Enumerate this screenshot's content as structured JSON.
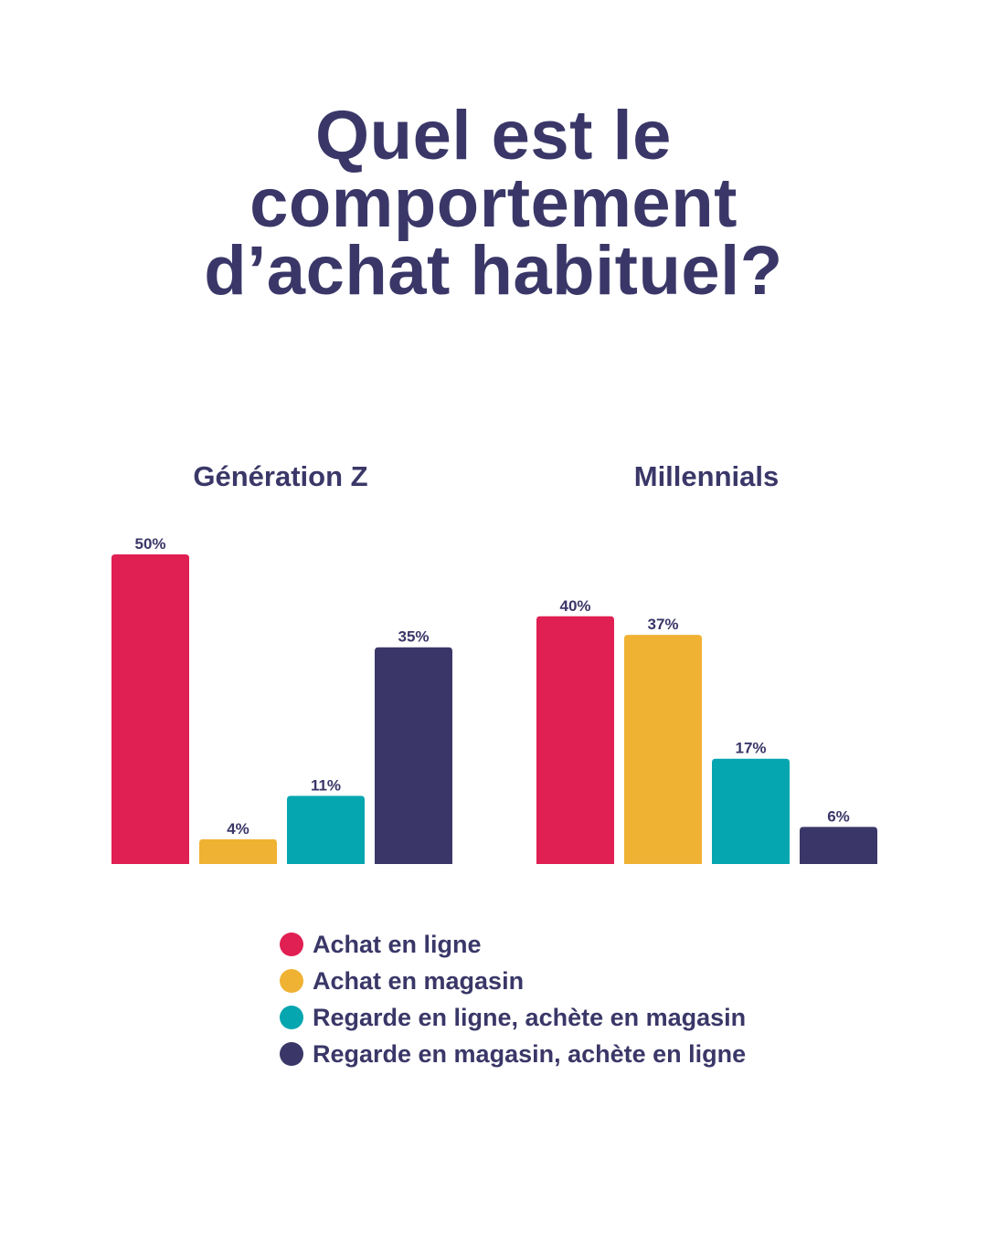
{
  "title_lines": [
    "Quel est le",
    "comportement",
    "d’achat habituel?"
  ],
  "chart_data": [
    {
      "type": "bar",
      "title": "Génération Z",
      "categories": [
        "Achat en ligne",
        "Achat en magasin",
        "Regarde en ligne, achète en magasin",
        "Regarde en magasin, achète en ligne"
      ],
      "values": [
        50,
        4,
        11,
        35
      ],
      "labels": [
        "50%",
        "4%",
        "11%",
        "35%"
      ],
      "ylim": [
        0,
        50
      ],
      "unit": "%"
    },
    {
      "type": "bar",
      "title": "Millennials",
      "categories": [
        "Achat en ligne",
        "Achat en magasin",
        "Regarde en ligne, achète en magasin",
        "Regarde en magasin, achète en ligne"
      ],
      "values": [
        40,
        37,
        17,
        6
      ],
      "labels": [
        "40%",
        "37%",
        "17%",
        "6%"
      ],
      "ylim": [
        0,
        50
      ],
      "unit": "%"
    }
  ],
  "legend": [
    {
      "label": "Achat en ligne",
      "color": "#E01F52"
    },
    {
      "label": "Achat en magasin",
      "color": "#F0B233"
    },
    {
      "label": "Regarde en ligne, achète en magasin",
      "color": "#05A6B0"
    },
    {
      "label": "Regarde en magasin, achète en ligne",
      "color": "#3A3768"
    }
  ]
}
